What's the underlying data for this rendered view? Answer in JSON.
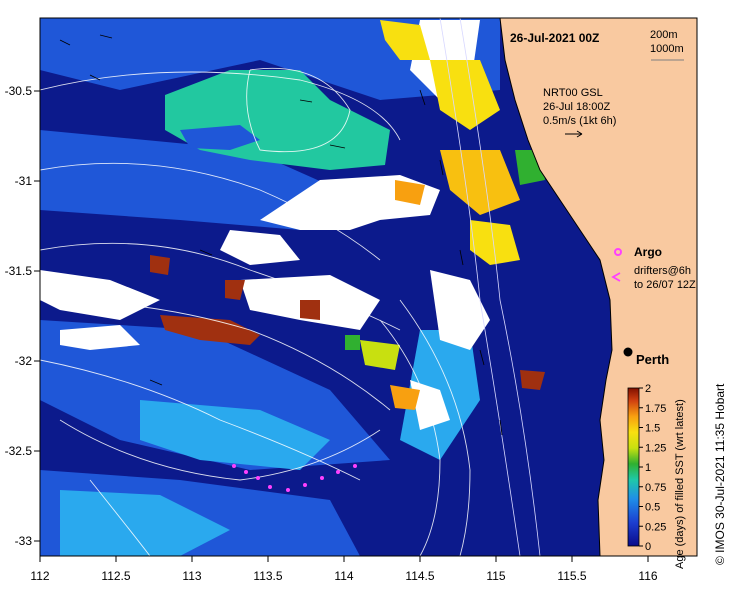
{
  "map": {
    "date_title": "26-Jul-2021 00Z",
    "bathymetry_labels": [
      "200m",
      "1000m"
    ],
    "current_legend": [
      "NRT00 GSL",
      "26-Jul 18:00Z",
      "0.5m/s (1kt 6h)"
    ],
    "argo_label": "Argo",
    "drifters_label": [
      "drifters@6h",
      "to 26/07 12Z"
    ],
    "city_label": "Perth",
    "credit": "© IMOS 30-Jul-2021 11:35 Hobart",
    "lon_ticks": [
      "112",
      "112.5",
      "113",
      "113.5",
      "114",
      "114.5",
      "115",
      "115.5",
      "116"
    ],
    "lat_ticks": [
      "-30.5",
      "-31",
      "-31.5",
      "-32",
      "-32.5",
      "-33"
    ],
    "colors": {
      "land": "#f9c9a0",
      "deep_ocean": "#0c1a8c",
      "mid_blue": "#1f57d8",
      "light_blue": "#2aa9ee",
      "teal": "#22c8a0",
      "no_data": "#ffffff",
      "drifter": "#ff40ff",
      "argo": "#ff40ff"
    }
  },
  "colorbar": {
    "label": "Age (days) of filled SST (wrt latest)",
    "ticks": [
      "0",
      "0.25",
      "0.5",
      "0.75",
      "1",
      "1.25",
      "1.5",
      "1.75",
      "2"
    ]
  }
}
